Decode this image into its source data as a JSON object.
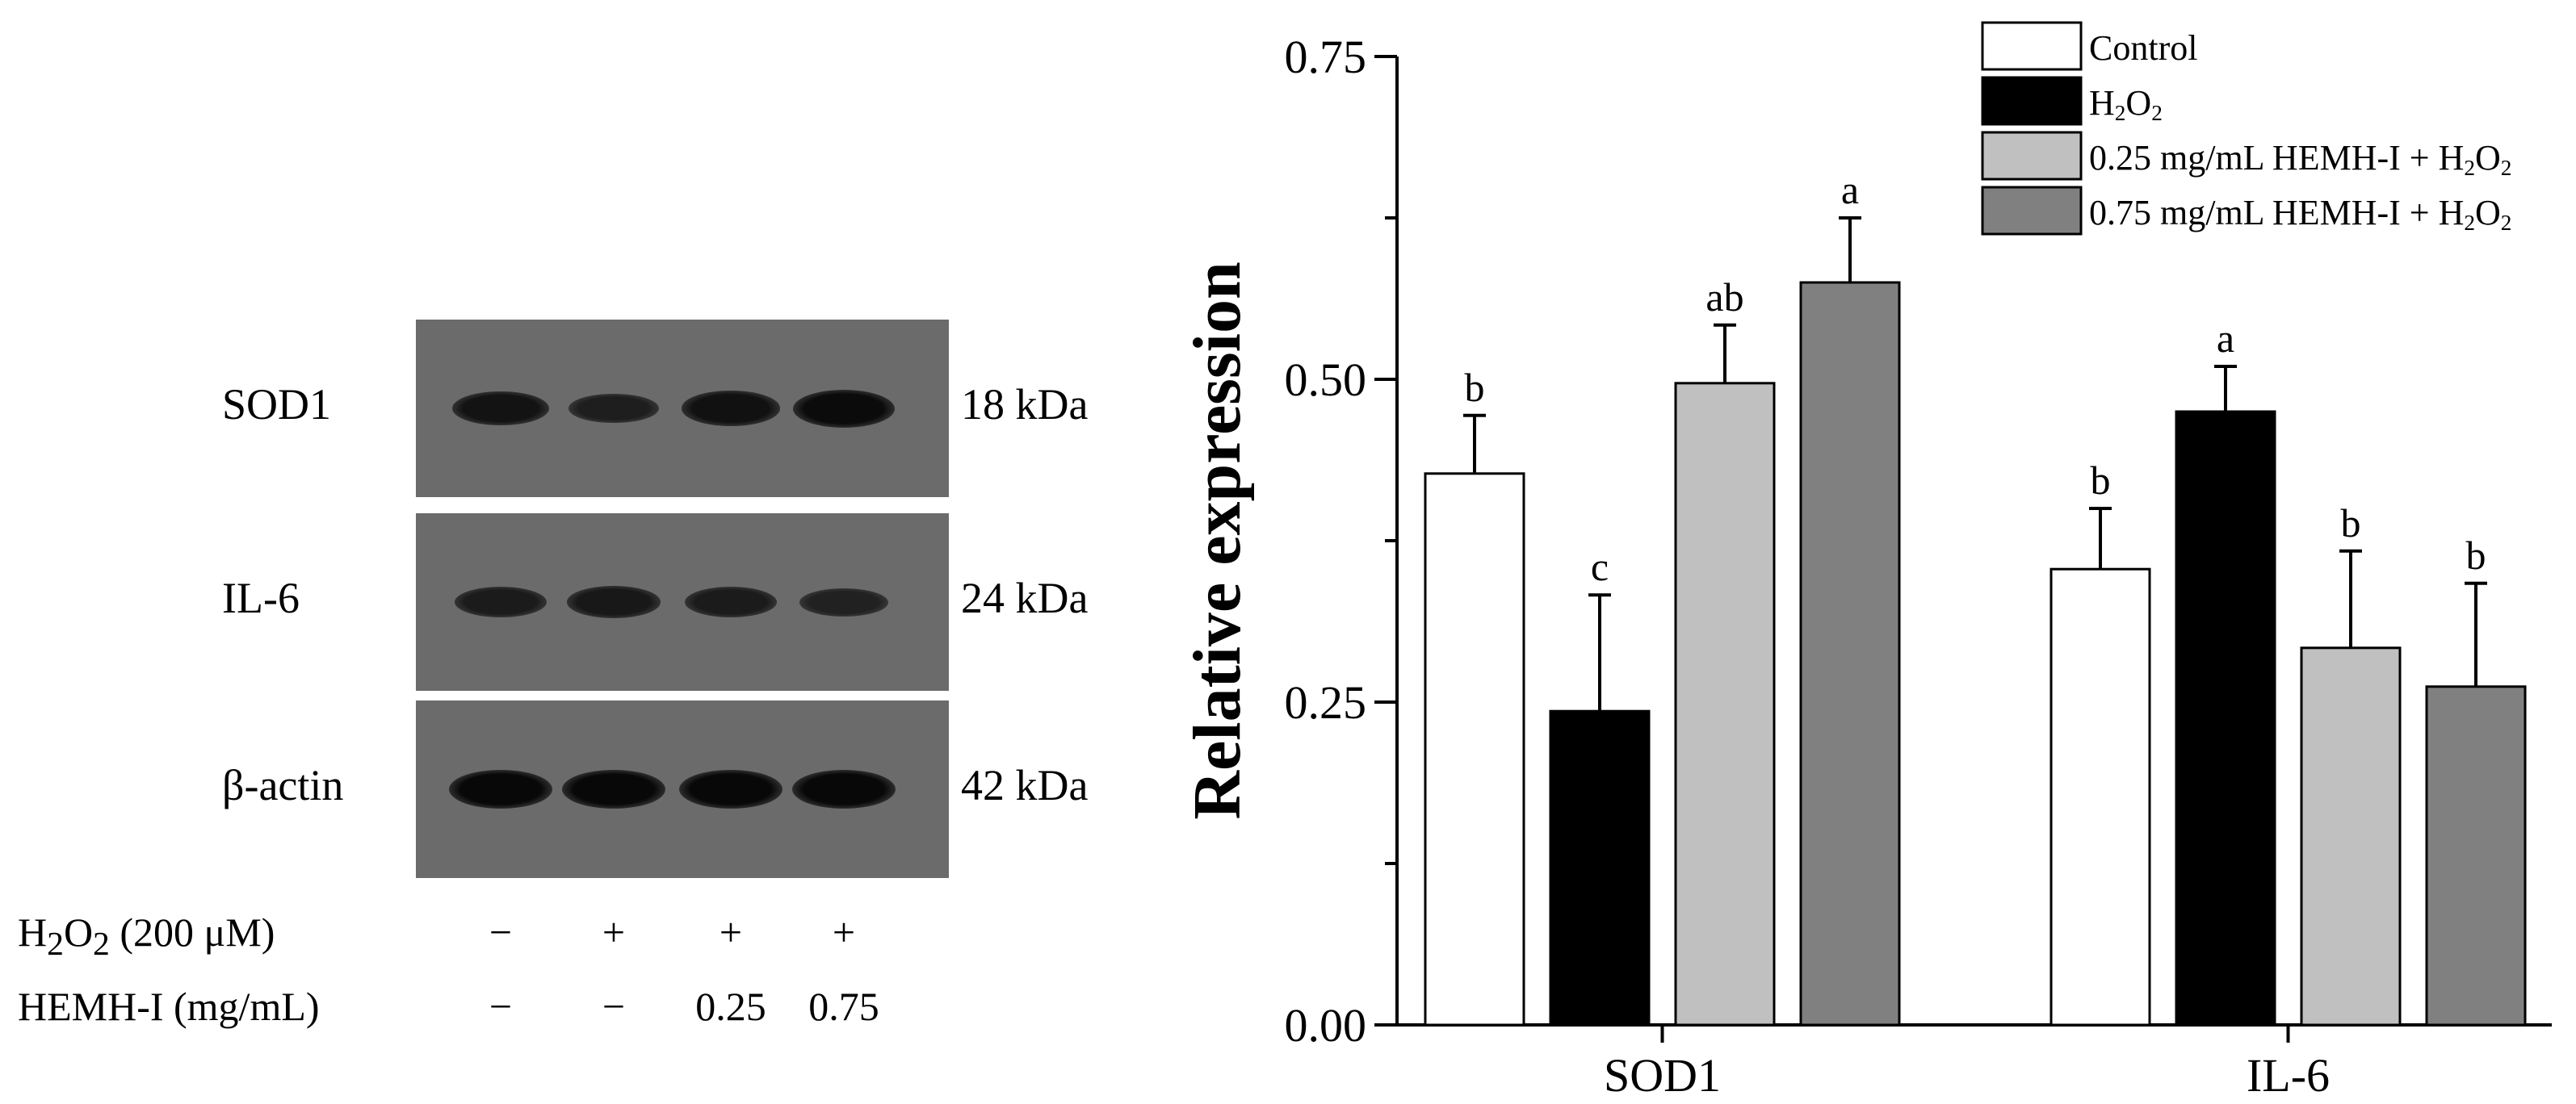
{
  "western_blot": {
    "bands": [
      {
        "name": "SOD1",
        "kda": "18 kDa",
        "intensity": [
          0.75,
          0.55,
          0.78,
          0.9
        ]
      },
      {
        "name": "IL-6",
        "kda": "24 kDa",
        "intensity": [
          0.6,
          0.65,
          0.6,
          0.5
        ]
      },
      {
        "name": "β-actin",
        "kda": "42 kDa",
        "intensity": [
          0.95,
          0.95,
          0.95,
          0.95
        ]
      }
    ],
    "conditions": [
      {
        "label": "H2O2 (200 μM)",
        "values": [
          "−",
          "+",
          "+",
          "+"
        ]
      },
      {
        "label": "HEMH-I (mg/mL)",
        "values": [
          "−",
          "−",
          "0.25",
          "0.75"
        ]
      }
    ]
  },
  "chart_data": {
    "type": "bar",
    "ylabel": "Relative expression",
    "xlabel": "",
    "ylim": [
      0,
      0.75
    ],
    "yticks": [
      "0.00",
      "0.25",
      "0.50",
      "0.75"
    ],
    "ytick_values": [
      0,
      0.25,
      0.5,
      0.75
    ],
    "categories": [
      "SOD1",
      "IL-6"
    ],
    "legend_position": "top-right",
    "series": [
      {
        "name": "Control",
        "color": "#ffffff",
        "values": [
          0.427,
          0.353
        ],
        "errors": [
          0.045,
          0.047
        ],
        "letters": [
          "b",
          "b"
        ]
      },
      {
        "name": "H2O2",
        "color": "#000000",
        "values": [
          0.243,
          0.475
        ],
        "errors": [
          0.09,
          0.035
        ],
        "letters": [
          "c",
          "a"
        ]
      },
      {
        "name": "0.25 mg/mL HEMH-I + H2O2",
        "color": "#c0c0c0",
        "values": [
          0.497,
          0.292
        ],
        "errors": [
          0.045,
          0.075
        ],
        "letters": [
          "ab",
          "b"
        ]
      },
      {
        "name": "0.75 mg/mL HEMH-I + H2O2",
        "color": "#808080",
        "values": [
          0.575,
          0.262
        ],
        "errors": [
          0.05,
          0.08
        ],
        "letters": [
          "a",
          "b"
        ]
      }
    ]
  }
}
